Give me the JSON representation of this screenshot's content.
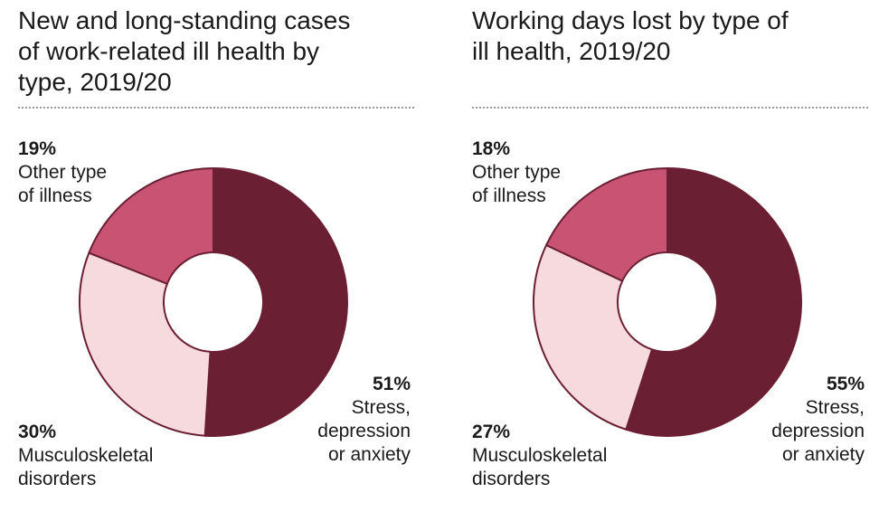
{
  "colors": {
    "stress": "#6b1f33",
    "other": "#c85372",
    "musculoskeletal": "#f6dade",
    "stroke": "#6b1f33",
    "divider": "#9a9a9a"
  },
  "chart_data": [
    {
      "type": "pie",
      "donut": true,
      "title": "New and long-standing cases\nof work-related ill health by\ntype, 2019/20",
      "slices": [
        {
          "key": "stress",
          "label": "Stress,\ndepression\nor anxiety",
          "value": 51,
          "display": "51%"
        },
        {
          "key": "musculoskeletal",
          "label": "Musculoskeletal\ndisorders",
          "value": 30,
          "display": "30%"
        },
        {
          "key": "other",
          "label": "Other type\nof illness",
          "value": 19,
          "display": "19%"
        }
      ]
    },
    {
      "type": "pie",
      "donut": true,
      "title": "Working days lost by type of\nill health, 2019/20",
      "slices": [
        {
          "key": "stress",
          "label": "Stress,\ndepression\nor anxiety",
          "value": 55,
          "display": "55%"
        },
        {
          "key": "musculoskeletal",
          "label": "Musculoskeletal\ndisorders",
          "value": 27,
          "display": "27%"
        },
        {
          "key": "other",
          "label": "Other type\nof illness",
          "value": 18,
          "display": "18%"
        }
      ]
    }
  ]
}
